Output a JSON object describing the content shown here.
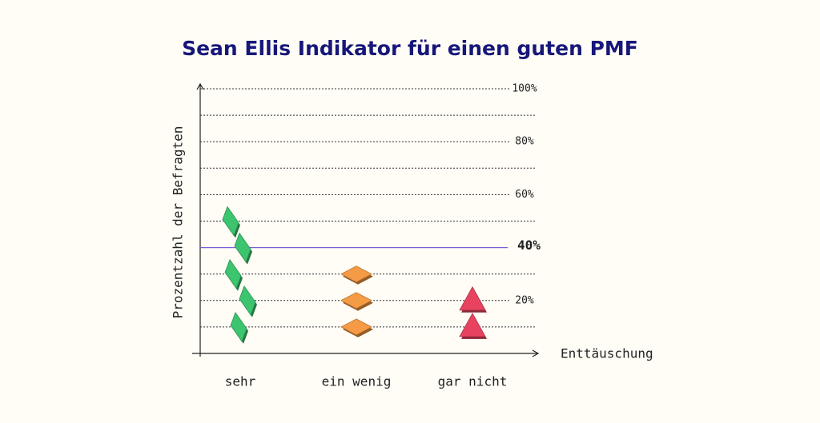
{
  "chart_data": {
    "type": "pictograph",
    "title": "Sean Ellis Indikator für einen guten PMF",
    "y_label": "Prozentzahl der Befragten",
    "x_label": "Enttäuschung",
    "categories": [
      "sehr",
      "ein wenig",
      "gar nicht"
    ],
    "values": [
      50,
      30,
      20
    ],
    "icon_value": 10,
    "colors": [
      "#3cc46e",
      "#f59a45",
      "#e8435e"
    ],
    "markers": [
      "diamond",
      "diamond-flat",
      "triangle"
    ],
    "ylim": [
      0,
      100
    ],
    "yticks": [
      {
        "value": 20,
        "label": "20%"
      },
      {
        "value": 60,
        "label": "60%"
      },
      {
        "value": 80,
        "label": "80%"
      },
      {
        "value": 100,
        "label": "100%"
      }
    ],
    "minor_yticks": [
      10,
      30,
      50,
      70,
      90
    ],
    "threshold": {
      "value": 40,
      "label": "40%",
      "color": "#7a5cd6"
    },
    "grid": true
  }
}
